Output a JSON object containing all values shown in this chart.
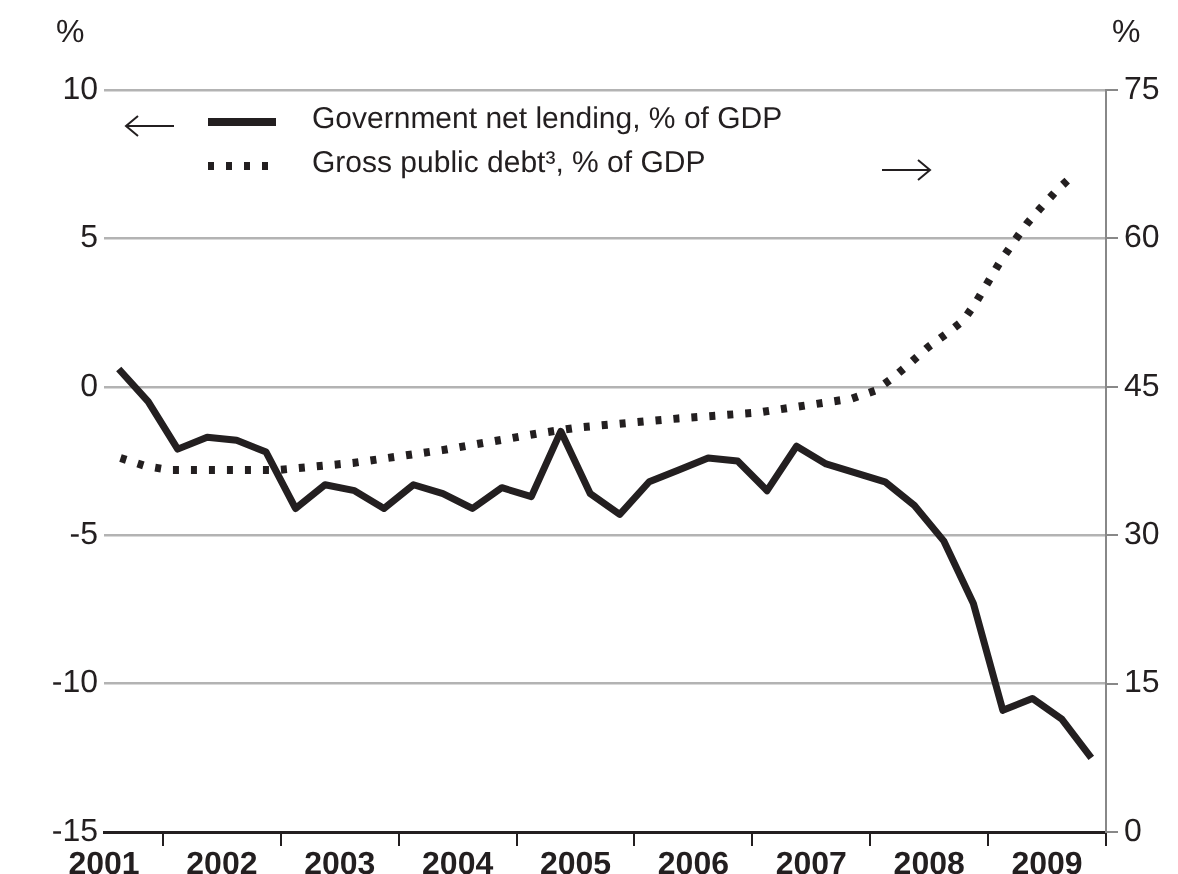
{
  "chart_data": {
    "type": "line",
    "ylabel": "%",
    "y2label": "%",
    "xlim": [
      2001.5,
      2010
    ],
    "xticks": [
      {
        "value": 2001.5,
        "label": "2001"
      },
      {
        "value": 2002,
        "label": null
      },
      {
        "value": 2002.5,
        "label": "2002"
      },
      {
        "value": 2003,
        "label": null
      },
      {
        "value": 2003.5,
        "label": "2003"
      },
      {
        "value": 2004,
        "label": null
      },
      {
        "value": 2004.5,
        "label": "2004"
      },
      {
        "value": 2005,
        "label": null
      },
      {
        "value": 2005.5,
        "label": "2005"
      },
      {
        "value": 2006,
        "label": null
      },
      {
        "value": 2006.5,
        "label": "2006"
      },
      {
        "value": 2007,
        "label": null
      },
      {
        "value": 2007.5,
        "label": "2007"
      },
      {
        "value": 2008,
        "label": null
      },
      {
        "value": 2008.5,
        "label": "2008"
      },
      {
        "value": 2009,
        "label": null
      },
      {
        "value": 2009.5,
        "label": "2009"
      },
      {
        "value": 2010,
        "label": null
      }
    ],
    "ylim": [
      -15,
      10
    ],
    "yticks": [
      -15,
      -10,
      -5,
      0,
      5,
      10
    ],
    "y2lim": [
      0,
      75
    ],
    "y2ticks": [
      0,
      15,
      30,
      45,
      60,
      75
    ],
    "grid": "y",
    "legend": "top",
    "marker": "none",
    "series": [
      {
        "name": "Government net lending, % of GDP",
        "color": "#231f20",
        "line_style": "solid",
        "x": [
          2001.625,
          2001.875,
          2002.125,
          2002.375,
          2002.625,
          2002.875,
          2003.125,
          2003.375,
          2003.625,
          2003.875,
          2004.125,
          2004.375,
          2004.625,
          2004.875,
          2005.125,
          2005.375,
          2005.625,
          2005.875,
          2006.125,
          2006.375,
          2006.625,
          2006.875,
          2007.125,
          2007.375,
          2007.625,
          2007.875,
          2008.125,
          2008.375,
          2008.625,
          2008.875,
          2009.125,
          2009.375,
          2009.625,
          2009.875
        ],
        "values": [
          0.6,
          -0.5,
          -2.1,
          -1.7,
          -1.8,
          -2.2,
          -4.1,
          -3.3,
          -3.5,
          -4.1,
          -3.3,
          -3.6,
          -4.1,
          -3.4,
          -3.7,
          -1.5,
          -3.6,
          -4.3,
          -3.2,
          -2.8,
          -2.4,
          -2.5,
          -3.5,
          -2.0,
          -2.6,
          -2.9,
          -3.2,
          -4.0,
          -5.2,
          -7.3,
          -10.9,
          -10.5,
          -11.2,
          -12.5
        ]
      },
      {
        "name": "Gross public debt³, % of GDP",
        "color": "#231f20",
        "line_style": "dotted",
        "axis": "y2",
        "x": [
          2001.64,
          2001.85,
          2002.05,
          2002.98,
          2003.61,
          2004.37,
          2005.19,
          2005.53,
          2006.37,
          2007.05,
          2007.84,
          2008.04,
          2008.18,
          2008.33,
          2008.49,
          2008.65,
          2008.79,
          2008.9,
          2009.0,
          2009.1,
          2009.22,
          2009.33,
          2009.44,
          2009.57,
          2009.72
        ],
        "values": [
          37.8,
          37.0,
          36.6,
          36.6,
          37.3,
          38.6,
          40.3,
          40.9,
          41.8,
          42.4,
          43.8,
          44.6,
          45.8,
          47.3,
          49.0,
          50.4,
          51.7,
          53.6,
          55.6,
          57.6,
          59.7,
          61.5,
          63.0,
          64.7,
          66.4
        ]
      }
    ]
  }
}
